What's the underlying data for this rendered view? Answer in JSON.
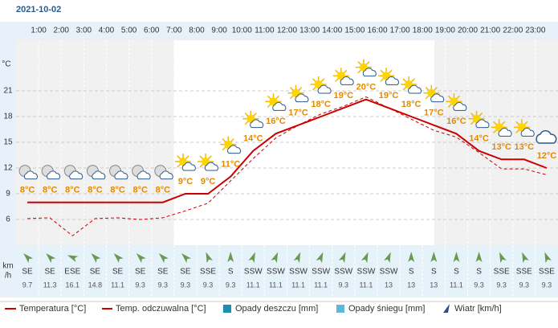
{
  "chart_data": {
    "type": "line",
    "title": "2021-10-02",
    "categories": [
      null,
      "1:00",
      "2:00",
      "3:00",
      "4:00",
      "5:00",
      "6:00",
      "7:00",
      "8:00",
      "9:00",
      "10:00",
      "11:00",
      "12:00",
      "13:00",
      "14:00",
      "15:00",
      "16:00",
      "17:00",
      "18:00",
      "19:00",
      "20:00",
      "21:00",
      "22:00",
      "23:00"
    ],
    "y_label": "°C",
    "ylim": [
      3,
      27
    ],
    "yticks": [
      6,
      9,
      12,
      15,
      18,
      21
    ],
    "grid": true,
    "series": [
      {
        "name": "Temperatura [°C]",
        "color": "#cc0000",
        "style": "solid",
        "values": [
          8,
          8,
          8,
          8,
          8,
          8,
          8,
          9,
          9,
          11,
          14,
          16,
          17,
          18,
          19,
          20,
          19,
          18,
          17,
          16,
          14,
          13,
          13,
          12
        ],
        "value_labels": [
          "8°C",
          "8°C",
          "8°C",
          "8°C",
          "8°C",
          "8°C",
          "8°C",
          "9°C",
          "9°C",
          "11°C",
          "14°C",
          "16°C",
          "17°C",
          "18°C",
          "19°C",
          "20°C",
          "19°C",
          "18°C",
          "17°C",
          "16°C",
          "14°C",
          "13°C",
          "13°C",
          "12°C"
        ]
      },
      {
        "name": "Temp. odczuwalna [°C]",
        "color": "#cc0000",
        "style": "dashed",
        "values": [
          6.1,
          6.2,
          4.1,
          6.1,
          6.2,
          6.0,
          6.2,
          7.0,
          7.9,
          10.5,
          13.1,
          15.5,
          17.0,
          18.3,
          19.2,
          20.3,
          19.0,
          17.7,
          16.4,
          15.6,
          13.8,
          11.9,
          11.9,
          11.2
        ]
      }
    ],
    "legend_items": [
      {
        "name": "Opady deszczu [mm]",
        "color": "#1a8fb0"
      },
      {
        "name": "Opady śniegu [mm]",
        "color": "#5bb8d8"
      }
    ],
    "wind": {
      "name": "Wiatr [km/h]",
      "unit_top": "km",
      "unit_bottom": "/h",
      "color": "#2a4f7a",
      "directions": [
        "SE",
        "SE",
        "ESE",
        "SE",
        "SE",
        "SE",
        "SE",
        "SE",
        "SSE",
        "S",
        "SSW",
        "SSW",
        "SSW",
        "SSW",
        "SSW",
        "SSW",
        "SSW",
        "S",
        "S",
        "S",
        "S",
        "SSE",
        "SSE",
        "SSE"
      ],
      "values": [
        9.7,
        11.3,
        16.1,
        14.8,
        11.1,
        9.3,
        9.3,
        9.3,
        9.3,
        9.3,
        11.1,
        11.1,
        11.1,
        11.1,
        9.3,
        11.1,
        13,
        13,
        13,
        11.1,
        9.3,
        9.3,
        9.3,
        9.3
      ]
    }
  }
}
